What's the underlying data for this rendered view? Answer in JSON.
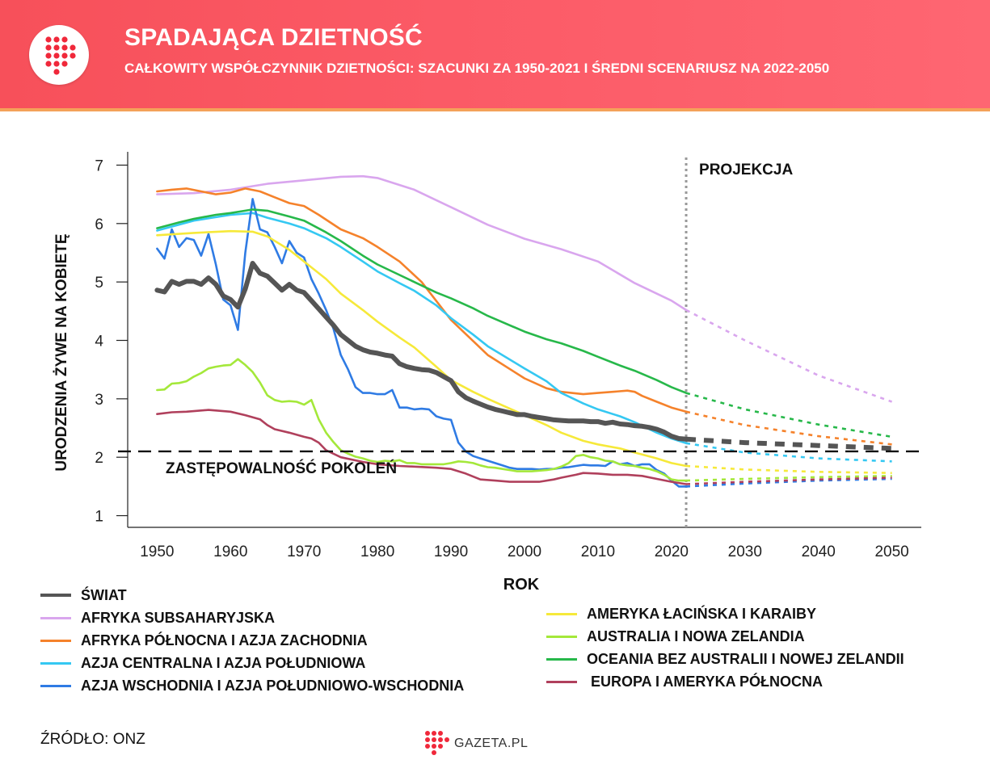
{
  "header": {
    "title": "SPADAJĄCA DZIETNOŚĆ",
    "subtitle": "CAŁKOWITY WSPÓŁCZYNNIK DZIETNOŚCI: SZACUNKI ZA 1950-2021 I ŚREDNI SCENARIUSZ NA 2022-2050",
    "background_color": "#fb5a66",
    "logo_icon": "gazeta-dots-logo"
  },
  "chart_data": {
    "type": "line",
    "xlabel": "ROK",
    "ylabel": "URODZENIA ŻYWE NA KOBIETĘ",
    "xlim": [
      1946,
      2054
    ],
    "ylim": [
      0.8,
      7.2
    ],
    "x_ticks": [
      1950,
      1960,
      1970,
      1980,
      1990,
      2000,
      2010,
      2020,
      2030,
      2040,
      2050
    ],
    "y_ticks": [
      1,
      2,
      3,
      4,
      5,
      6,
      7
    ],
    "grid": false,
    "projection_start": 2022,
    "projection_label": "PROJEKCJA",
    "replacement_level": 2.1,
    "replacement_label": "ZASTĘPOWALNOŚĆ POKOLEŃ",
    "projection_line_style": "dotted",
    "series": [
      {
        "name": "ŚWIAT",
        "color": "#555555",
        "x": [
          1950,
          1951,
          1952,
          1953,
          1954,
          1955,
          1956,
          1957,
          1958,
          1959,
          1960,
          1961,
          1962,
          1963,
          1964,
          1965,
          1966,
          1967,
          1968,
          1969,
          1970,
          1971,
          1972,
          1973,
          1974,
          1975,
          1976,
          1977,
          1978,
          1979,
          1980,
          1981,
          1982,
          1983,
          1984,
          1985,
          1986,
          1987,
          1988,
          1989,
          1990,
          1991,
          1992,
          1993,
          1994,
          1995,
          1996,
          1997,
          1998,
          1999,
          2000,
          2001,
          2002,
          2003,
          2004,
          2005,
          2006,
          2007,
          2008,
          2009,
          2010,
          2011,
          2012,
          2013,
          2014,
          2015,
          2016,
          2017,
          2018,
          2019,
          2020,
          2021,
          2022
        ],
        "y": [
          4.86,
          4.83,
          5.01,
          4.96,
          5.01,
          5.01,
          4.96,
          5.07,
          4.96,
          4.76,
          4.7,
          4.57,
          4.88,
          5.32,
          5.15,
          5.1,
          4.98,
          4.86,
          4.96,
          4.86,
          4.82,
          4.68,
          4.54,
          4.4,
          4.26,
          4.1,
          4.0,
          3.9,
          3.84,
          3.8,
          3.78,
          3.75,
          3.73,
          3.6,
          3.55,
          3.52,
          3.5,
          3.49,
          3.45,
          3.38,
          3.31,
          3.12,
          3.02,
          2.96,
          2.91,
          2.86,
          2.82,
          2.79,
          2.76,
          2.73,
          2.73,
          2.7,
          2.68,
          2.66,
          2.64,
          2.63,
          2.62,
          2.62,
          2.62,
          2.61,
          2.61,
          2.58,
          2.6,
          2.57,
          2.56,
          2.54,
          2.53,
          2.51,
          2.48,
          2.43,
          2.36,
          2.32,
          2.31
        ],
        "projection_x": [
          2022,
          2030,
          2040,
          2050
        ],
        "projection_y": [
          2.31,
          2.25,
          2.2,
          2.15
        ]
      },
      {
        "name": "AFRYKA SUBSAHARYJSKA",
        "color": "#d9a6ee",
        "x": [
          1950,
          1955,
          1960,
          1965,
          1970,
          1975,
          1978,
          1980,
          1985,
          1990,
          1995,
          2000,
          2005,
          2010,
          2015,
          2020,
          2022
        ],
        "y": [
          6.5,
          6.52,
          6.58,
          6.68,
          6.74,
          6.8,
          6.81,
          6.78,
          6.58,
          6.28,
          5.98,
          5.74,
          5.56,
          5.35,
          4.98,
          4.68,
          4.52
        ],
        "projection_x": [
          2022,
          2030,
          2040,
          2050
        ],
        "projection_y": [
          4.52,
          4.0,
          3.4,
          2.95
        ]
      },
      {
        "name": "AFRYKA PÓŁNOCNA I AZJA ZACHODNIA",
        "color": "#f5822b",
        "x": [
          1950,
          1952,
          1954,
          1956,
          1958,
          1960,
          1962,
          1964,
          1966,
          1968,
          1970,
          1972,
          1975,
          1978,
          1980,
          1983,
          1986,
          1990,
          1995,
          2000,
          2003,
          2005,
          2008,
          2010,
          2012,
          2014,
          2015,
          2016,
          2018,
          2020,
          2022
        ],
        "y": [
          6.55,
          6.58,
          6.6,
          6.55,
          6.5,
          6.53,
          6.6,
          6.55,
          6.45,
          6.35,
          6.3,
          6.15,
          5.9,
          5.75,
          5.6,
          5.35,
          5.0,
          4.35,
          3.75,
          3.35,
          3.18,
          3.12,
          3.08,
          3.1,
          3.12,
          3.14,
          3.12,
          3.05,
          2.95,
          2.85,
          2.78
        ],
        "projection_x": [
          2022,
          2030,
          2040,
          2050
        ],
        "projection_y": [
          2.78,
          2.55,
          2.36,
          2.22
        ]
      },
      {
        "name": "AZJA CENTRALNA I AZJA POŁUDNIOWA",
        "color": "#35c8f2",
        "x": [
          1950,
          1955,
          1960,
          1963,
          1965,
          1968,
          1970,
          1973,
          1975,
          1978,
          1980,
          1983,
          1985,
          1988,
          1990,
          1993,
          1995,
          2000,
          2003,
          2005,
          2008,
          2010,
          2013,
          2015,
          2018,
          2020,
          2022
        ],
        "y": [
          5.88,
          6.05,
          6.15,
          6.18,
          6.1,
          6.0,
          5.92,
          5.75,
          5.6,
          5.35,
          5.18,
          4.98,
          4.85,
          4.6,
          4.38,
          4.1,
          3.9,
          3.52,
          3.3,
          3.1,
          2.92,
          2.82,
          2.7,
          2.6,
          2.42,
          2.32,
          2.24
        ],
        "projection_x": [
          2022,
          2030,
          2040,
          2050
        ],
        "projection_y": [
          2.24,
          2.08,
          1.98,
          1.93
        ]
      },
      {
        "name": "AZJA WSCHODNIA I AZJA POŁUDNIOWO-WSCHODNIA",
        "color": "#2f7be4",
        "x": [
          1950,
          1951,
          1952,
          1953,
          1954,
          1955,
          1956,
          1957,
          1958,
          1959,
          1960,
          1961,
          1962,
          1963,
          1964,
          1965,
          1966,
          1967,
          1968,
          1969,
          1970,
          1971,
          1972,
          1973,
          1974,
          1975,
          1976,
          1977,
          1978,
          1979,
          1980,
          1981,
          1982,
          1983,
          1984,
          1985,
          1986,
          1987,
          1988,
          1989,
          1990,
          1991,
          1992,
          1993,
          1994,
          1995,
          1996,
          1997,
          1998,
          1999,
          2000,
          2001,
          2002,
          2003,
          2004,
          2005,
          2006,
          2007,
          2008,
          2009,
          2010,
          2011,
          2012,
          2013,
          2014,
          2015,
          2016,
          2017,
          2018,
          2019,
          2020,
          2021,
          2022
        ],
        "y": [
          5.57,
          5.4,
          5.9,
          5.6,
          5.75,
          5.72,
          5.45,
          5.82,
          5.3,
          4.7,
          4.6,
          4.18,
          5.5,
          6.42,
          5.9,
          5.85,
          5.6,
          5.32,
          5.7,
          5.5,
          5.42,
          5.05,
          4.8,
          4.52,
          4.2,
          3.75,
          3.5,
          3.2,
          3.1,
          3.1,
          3.08,
          3.08,
          3.15,
          2.85,
          2.85,
          2.82,
          2.83,
          2.82,
          2.7,
          2.66,
          2.64,
          2.25,
          2.1,
          2.02,
          1.98,
          1.94,
          1.9,
          1.86,
          1.82,
          1.8,
          1.8,
          1.8,
          1.79,
          1.8,
          1.8,
          1.82,
          1.83,
          1.85,
          1.87,
          1.86,
          1.86,
          1.85,
          1.93,
          1.88,
          1.9,
          1.85,
          1.88,
          1.88,
          1.78,
          1.72,
          1.6,
          1.5,
          1.5
        ],
        "projection_x": [
          2022,
          2030,
          2040,
          2050
        ],
        "projection_y": [
          1.5,
          1.55,
          1.6,
          1.63
        ]
      },
      {
        "name": "AMERYKA ŁACIŃSKA I KARAIBY",
        "color": "#f6e93a",
        "x": [
          1950,
          1955,
          1960,
          1963,
          1965,
          1968,
          1970,
          1973,
          1975,
          1978,
          1980,
          1983,
          1985,
          1988,
          1990,
          1993,
          1995,
          2000,
          2003,
          2005,
          2008,
          2010,
          2013,
          2015,
          2018,
          2020,
          2022
        ],
        "y": [
          5.8,
          5.84,
          5.87,
          5.86,
          5.78,
          5.55,
          5.35,
          5.05,
          4.8,
          4.52,
          4.32,
          4.05,
          3.88,
          3.55,
          3.32,
          3.12,
          3.0,
          2.72,
          2.55,
          2.42,
          2.28,
          2.22,
          2.15,
          2.08,
          1.98,
          1.9,
          1.85
        ],
        "projection_x": [
          2022,
          2030,
          2040,
          2050
        ],
        "projection_y": [
          1.85,
          1.79,
          1.75,
          1.73
        ]
      },
      {
        "name": "AUSTRALIA I NOWA ZELANDIA",
        "color": "#a4e83a",
        "x": [
          1950,
          1951,
          1952,
          1953,
          1954,
          1955,
          1956,
          1957,
          1958,
          1959,
          1960,
          1961,
          1962,
          1963,
          1964,
          1965,
          1966,
          1967,
          1968,
          1969,
          1970,
          1971,
          1972,
          1973,
          1974,
          1975,
          1976,
          1977,
          1978,
          1979,
          1980,
          1981,
          1982,
          1983,
          1984,
          1985,
          1986,
          1987,
          1988,
          1989,
          1990,
          1991,
          1992,
          1993,
          1994,
          1995,
          1996,
          1997,
          1998,
          1999,
          2000,
          2001,
          2002,
          2003,
          2004,
          2005,
          2006,
          2007,
          2008,
          2009,
          2010,
          2011,
          2012,
          2013,
          2014,
          2015,
          2016,
          2017,
          2018,
          2019,
          2020,
          2021,
          2022
        ],
        "y": [
          3.15,
          3.16,
          3.26,
          3.27,
          3.3,
          3.38,
          3.44,
          3.52,
          3.55,
          3.57,
          3.58,
          3.68,
          3.58,
          3.46,
          3.28,
          3.06,
          2.98,
          2.95,
          2.96,
          2.95,
          2.9,
          2.98,
          2.65,
          2.42,
          2.26,
          2.12,
          2.06,
          2.01,
          1.98,
          1.94,
          1.92,
          1.94,
          1.93,
          1.95,
          1.9,
          1.9,
          1.88,
          1.88,
          1.88,
          1.88,
          1.9,
          1.93,
          1.92,
          1.9,
          1.86,
          1.83,
          1.82,
          1.8,
          1.78,
          1.76,
          1.76,
          1.76,
          1.77,
          1.78,
          1.8,
          1.84,
          1.9,
          2.02,
          2.04,
          2.0,
          1.98,
          1.94,
          1.93,
          1.88,
          1.86,
          1.85,
          1.82,
          1.8,
          1.76,
          1.7,
          1.62,
          1.6,
          1.6
        ],
        "projection_x": [
          2022,
          2030,
          2040,
          2050
        ],
        "projection_y": [
          1.6,
          1.63,
          1.66,
          1.68
        ]
      },
      {
        "name": "OCEANIA BEZ AUSTRALII I NOWEJ ZELANDII",
        "color": "#27b84a",
        "x": [
          1950,
          1953,
          1955,
          1958,
          1960,
          1962,
          1963,
          1965,
          1968,
          1970,
          1973,
          1975,
          1978,
          1980,
          1983,
          1985,
          1988,
          1990,
          1993,
          1995,
          2000,
          2003,
          2005,
          2008,
          2010,
          2013,
          2015,
          2018,
          2020,
          2022
        ],
        "y": [
          5.92,
          6.02,
          6.08,
          6.15,
          6.18,
          6.22,
          6.24,
          6.22,
          6.12,
          6.05,
          5.85,
          5.7,
          5.45,
          5.3,
          5.12,
          5.0,
          4.82,
          4.72,
          4.55,
          4.42,
          4.15,
          4.02,
          3.95,
          3.82,
          3.72,
          3.57,
          3.48,
          3.32,
          3.2,
          3.1
        ],
        "projection_x": [
          2022,
          2030,
          2040,
          2050
        ],
        "projection_y": [
          3.1,
          2.82,
          2.56,
          2.35
        ]
      },
      {
        "name": " EUROPA I AMERYKA PÓŁNOCNA",
        "color": "#b0405c",
        "x": [
          1950,
          1952,
          1954,
          1956,
          1957,
          1958,
          1960,
          1962,
          1964,
          1965,
          1966,
          1968,
          1970,
          1971,
          1972,
          1973,
          1975,
          1978,
          1980,
          1983,
          1985,
          1988,
          1990,
          1992,
          1994,
          1996,
          1998,
          2000,
          2002,
          2004,
          2005,
          2007,
          2008,
          2010,
          2012,
          2014,
          2016,
          2018,
          2020,
          2022
        ],
        "y": [
          2.74,
          2.77,
          2.78,
          2.8,
          2.81,
          2.8,
          2.78,
          2.72,
          2.65,
          2.55,
          2.48,
          2.42,
          2.35,
          2.32,
          2.25,
          2.12,
          2.0,
          1.92,
          1.88,
          1.85,
          1.84,
          1.82,
          1.8,
          1.72,
          1.62,
          1.6,
          1.58,
          1.58,
          1.58,
          1.62,
          1.65,
          1.7,
          1.73,
          1.72,
          1.7,
          1.7,
          1.68,
          1.63,
          1.58,
          1.54
        ],
        "projection_x": [
          2022,
          2030,
          2040,
          2050
        ],
        "projection_y": [
          1.54,
          1.58,
          1.62,
          1.65
        ]
      }
    ]
  },
  "legend": {
    "left": [
      {
        "label": "ŚWIAT",
        "color": "#555555"
      },
      {
        "label": "AFRYKA SUBSAHARYJSKA",
        "color": "#d9a6ee"
      },
      {
        "label": "AFRYKA PÓŁNOCNA I AZJA ZACHODNIA",
        "color": "#f5822b"
      },
      {
        "label": "AZJA CENTRALNA I AZJA POŁUDNIOWA",
        "color": "#35c8f2"
      },
      {
        "label": "AZJA WSCHODNIA I AZJA POŁUDNIOWO-WSCHODNIA",
        "color": "#2f7be4"
      }
    ],
    "right": [
      {
        "label": "AMERYKA ŁACIŃSKA I KARAIBY",
        "color": "#f6e93a"
      },
      {
        "label": "AUSTRALIA I NOWA ZELANDIA",
        "color": "#a4e83a"
      },
      {
        "label": "OCEANIA BEZ AUSTRALII I NOWEJ ZELANDII",
        "color": "#27b84a"
      },
      {
        "label": " EUROPA I AMERYKA PÓŁNOCNA",
        "color": "#b0405c"
      }
    ]
  },
  "footer": {
    "source": "ŹRÓDŁO: ONZ",
    "brand": "GAZETA.PL",
    "brand_icon": "gazeta-dots-logo"
  }
}
